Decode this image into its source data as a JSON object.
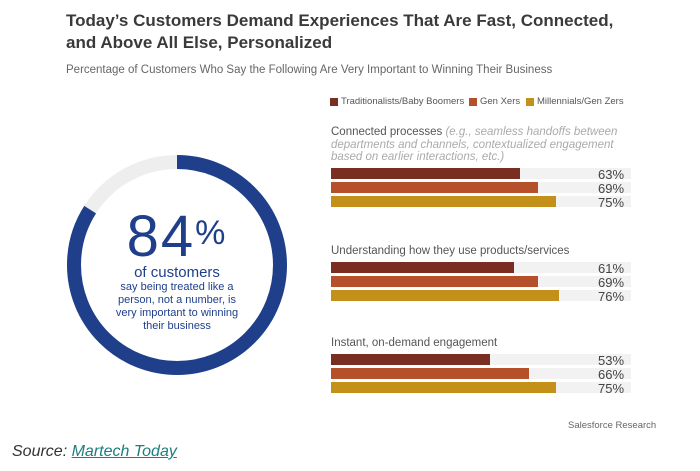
{
  "header": {
    "title": "Today’s Customers Demand Experiences That Are Fast, Connected, and Above All Else, Personalized",
    "subtitle": "Percentage of Customers Who Say the Following Are Very Important to Winning Their Business"
  },
  "highlight": {
    "value": 84,
    "value_text": "84",
    "percent_sign": "%",
    "headline": "of customers",
    "caption": "say being treated like a person, not a number, is very important to winning their business",
    "ring_color": "#1f3f8b",
    "track_color": "#eeeeee"
  },
  "chart_data": {
    "type": "bar",
    "orientation": "horizontal",
    "categories": [
      {
        "label": "Connected processes",
        "note": "(e.g., seamless handoffs between departments and channels, contextualized engagement based on earlier interactions, etc.)"
      },
      {
        "label": "Understanding how they use products/services",
        "note": ""
      },
      {
        "label": "Instant, on-demand engagement",
        "note": ""
      }
    ],
    "series": [
      {
        "name": "Traditionalists/Baby Boomers",
        "color": "#7a2e22",
        "values": [
          63,
          61,
          53
        ]
      },
      {
        "name": "Gen Xers",
        "color": "#b5502a",
        "values": [
          69,
          69,
          66
        ]
      },
      {
        "name": "Millennials/Gen Zers",
        "color": "#c3901a",
        "values": [
          75,
          76,
          75
        ]
      }
    ],
    "value_suffix": "%",
    "xlim": [
      0,
      100
    ],
    "legend_position": "top"
  },
  "footer": {
    "research_credit": "Salesforce Research",
    "source_prefix": "Source: ",
    "source_name": "Martech Today"
  }
}
